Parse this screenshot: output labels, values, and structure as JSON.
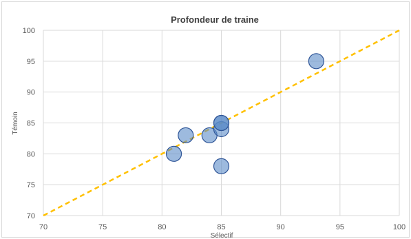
{
  "chart_data": {
    "type": "scatter",
    "title": "Profondeur de traine",
    "xlabel": "Sélectif",
    "ylabel": "Témoin",
    "xlim": [
      70,
      100
    ],
    "ylim": [
      70,
      100
    ],
    "xticks": [
      70,
      75,
      80,
      85,
      90,
      95,
      100
    ],
    "yticks": [
      70,
      75,
      80,
      85,
      90,
      95,
      100
    ],
    "grid": true,
    "legend": "none",
    "series": [
      {
        "points": [
          {
            "x": 81,
            "y": 80
          },
          {
            "x": 82,
            "y": 83
          },
          {
            "x": 84,
            "y": 83
          },
          {
            "x": 85,
            "y": 84
          },
          {
            "x": 85,
            "y": 85
          },
          {
            "x": 85,
            "y": 85
          },
          {
            "x": 85,
            "y": 78
          },
          {
            "x": 93,
            "y": 95
          }
        ],
        "color": "#5b8cc8"
      }
    ],
    "reference_line": {
      "from": [
        70,
        70
      ],
      "to": [
        100,
        100
      ],
      "style": "dashed",
      "color": "#ffc000"
    }
  }
}
